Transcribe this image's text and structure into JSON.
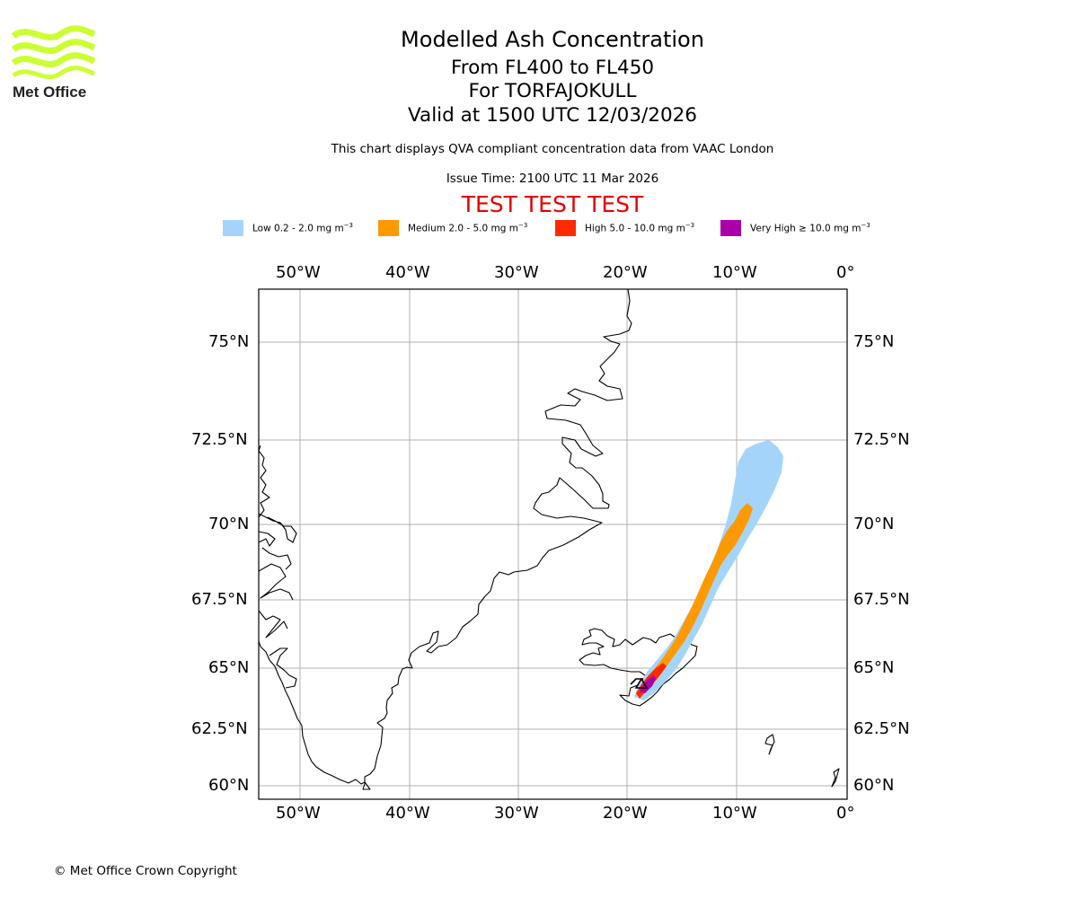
{
  "logo": {
    "text": "Met Office",
    "wave_color": "#ccff33"
  },
  "titles": {
    "line1": "Modelled Ash Concentration",
    "line2": "From FL400 to FL450",
    "line3": "For TORFAJOKULL",
    "line4": "Valid at 1500 UTC 12/03/2026"
  },
  "subtitle": "This chart displays QVA compliant concentration data from VAAC London",
  "issue_time": "Issue Time: 2100 UTC 11 Mar 2026",
  "test_banner": "TEST TEST TEST",
  "legend": [
    {
      "label": "Low 0.2 - 2.0 mg m",
      "unit_exp": "−3",
      "color": "#a5d4fb"
    },
    {
      "label": "Medium 2.0 - 5.0 mg m",
      "unit_exp": "−3",
      "color": "#ff9900"
    },
    {
      "label": "High 5.0 - 10.0 mg m",
      "unit_exp": "−3",
      "color": "#ff2a00"
    },
    {
      "label": "Very High ≥ 10.0 mg m",
      "unit_exp": "−3",
      "color": "#aa00aa"
    }
  ],
  "axes": {
    "lon_ticks": [
      "50°W",
      "40°W",
      "30°W",
      "20°W",
      "10°W",
      "0°"
    ],
    "lat_ticks": [
      "75°N",
      "72.5°N",
      "70°N",
      "67.5°N",
      "65°N",
      "62.5°N",
      "60°N"
    ],
    "grid": true
  },
  "volcano": {
    "name": "TORFAJOKULL",
    "marker": "triangle-icon"
  },
  "copyright": "© Met Office Crown Copyright"
}
